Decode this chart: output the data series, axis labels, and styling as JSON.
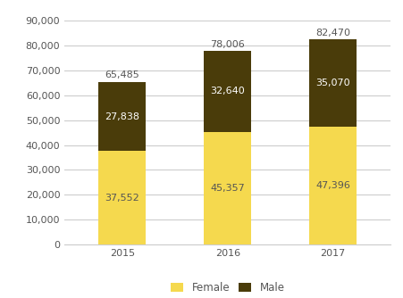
{
  "years": [
    "2015",
    "2016",
    "2017"
  ],
  "female": [
    37552,
    45357,
    47396
  ],
  "male": [
    27838,
    32640,
    35070
  ],
  "totals": [
    65485,
    78006,
    82470
  ],
  "female_color": "#f5d94e",
  "male_color": "#4a3c0a",
  "female_label": "Female",
  "male_label": "Male",
  "ylim": [
    0,
    90000
  ],
  "yticks": [
    0,
    10000,
    20000,
    30000,
    40000,
    50000,
    60000,
    70000,
    80000,
    90000
  ],
  "background_color": "#ffffff",
  "grid_color": "#cccccc",
  "bar_width": 0.45,
  "female_label_color": "#555555",
  "male_label_color": "#ffffff",
  "total_label_color": "#555555",
  "label_fontsize": 8.0,
  "tick_fontsize": 8.0,
  "legend_fontsize": 8.5
}
